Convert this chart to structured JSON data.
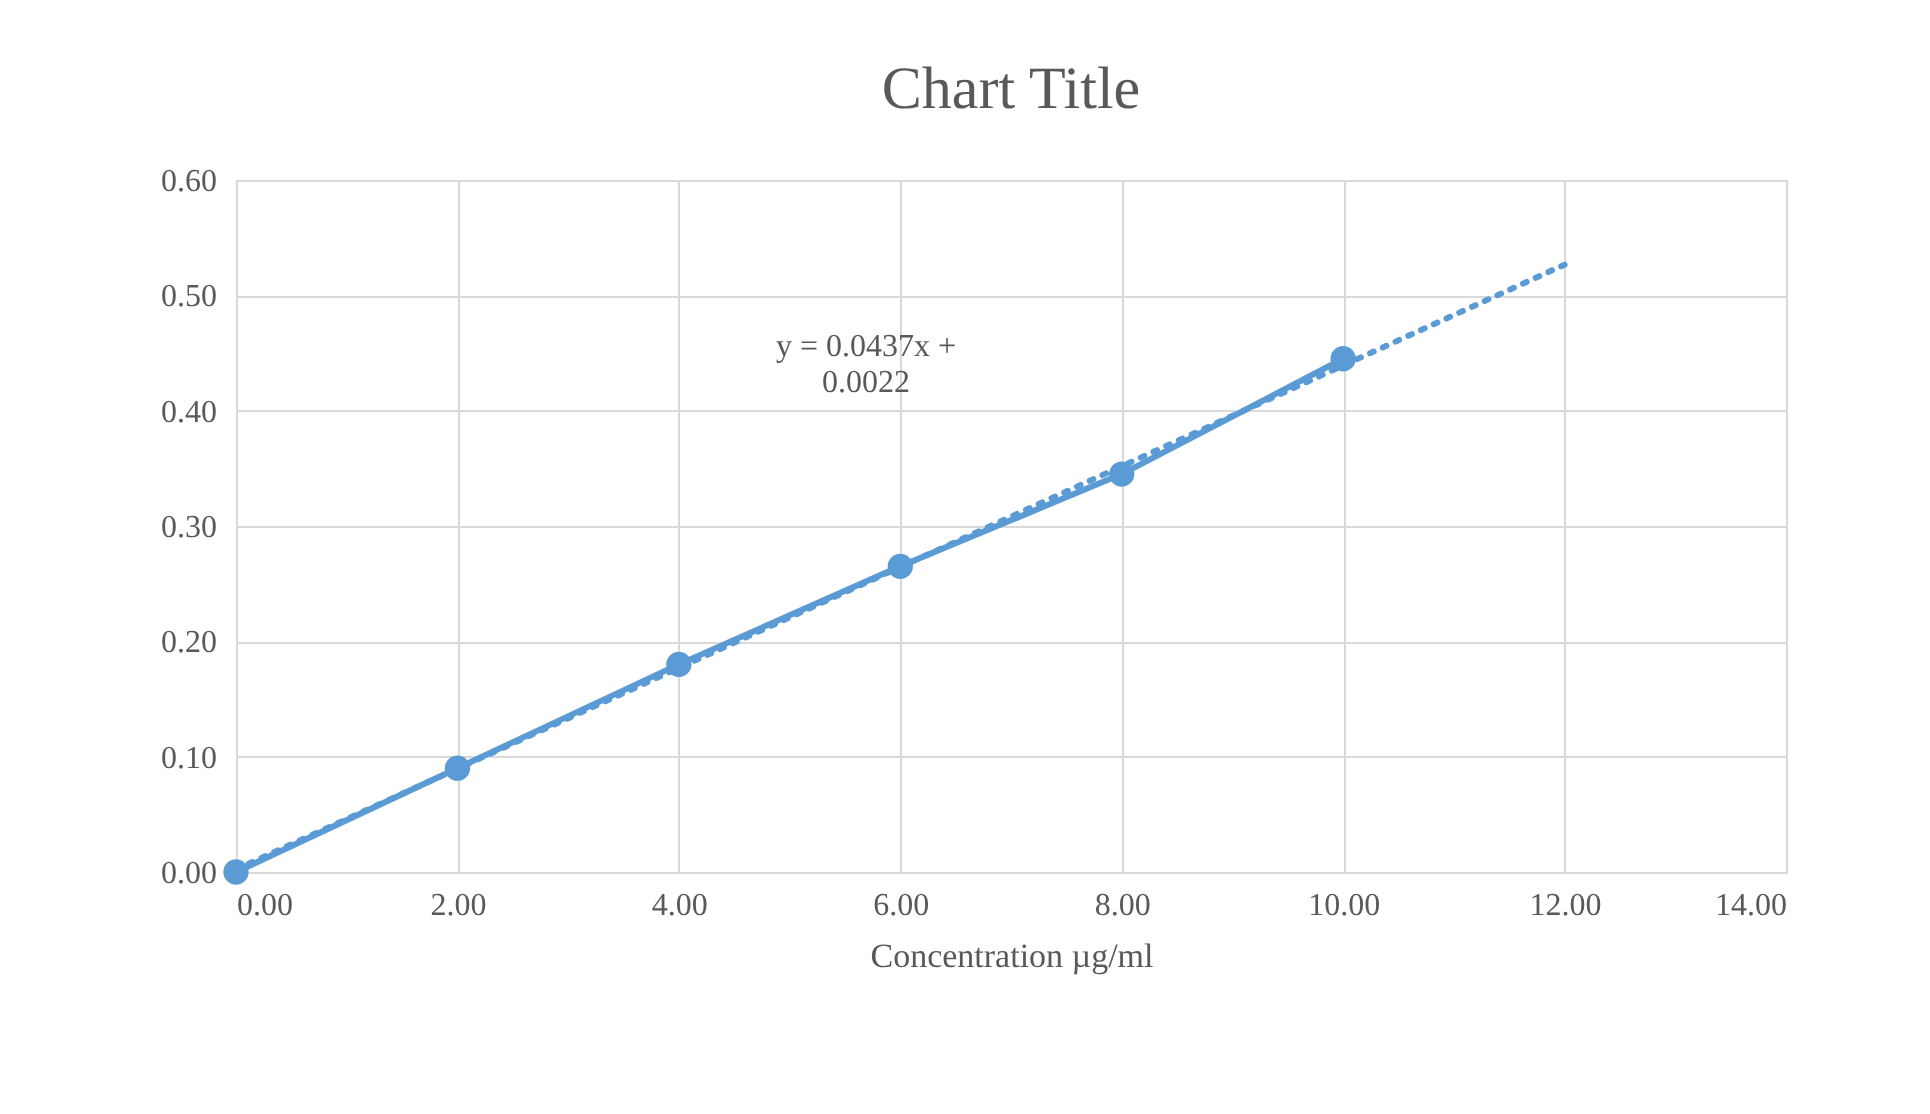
{
  "chart_data": {
    "type": "line",
    "title": "Chart Title",
    "xlabel": "Concentration µg/ml",
    "x": [
      0,
      2,
      4,
      6,
      8,
      10
    ],
    "series": [
      {
        "color": "#5b9bd5",
        "values": [
          0,
          0.09,
          0.18,
          0.265,
          0.345,
          0.445
        ],
        "marker": "circle",
        "line_style": "solid"
      },
      {
        "color": "#5b9bd5",
        "x": [
          0,
          12
        ],
        "values": [
          0.0022,
          0.5266
        ],
        "marker": "none",
        "line_style": "dotted"
      }
    ],
    "xlim": [
      0,
      14
    ],
    "xticks": [
      {
        "value": 0,
        "label": "0.00"
      },
      {
        "value": 2,
        "label": "2.00"
      },
      {
        "value": 4,
        "label": "4.00"
      },
      {
        "value": 6,
        "label": "6.00"
      },
      {
        "value": 8,
        "label": "8.00"
      },
      {
        "value": 10,
        "label": "10.00"
      },
      {
        "value": 12,
        "label": "12.00"
      },
      {
        "value": 14,
        "label": "14.00"
      }
    ],
    "ylim": [
      0,
      0.6
    ],
    "yticks": [
      {
        "value": 0,
        "label": "0.00"
      },
      {
        "value": 0.1,
        "label": "0.10"
      },
      {
        "value": 0.2,
        "label": "0.20"
      },
      {
        "value": 0.3,
        "label": "0.30"
      },
      {
        "value": 0.4,
        "label": "0.40"
      },
      {
        "value": 0.5,
        "label": "0.50"
      },
      {
        "value": 0.6,
        "label": "0.60"
      }
    ],
    "annotations": [
      "y = 0.0437x + 0.0022"
    ],
    "grid": true
  }
}
